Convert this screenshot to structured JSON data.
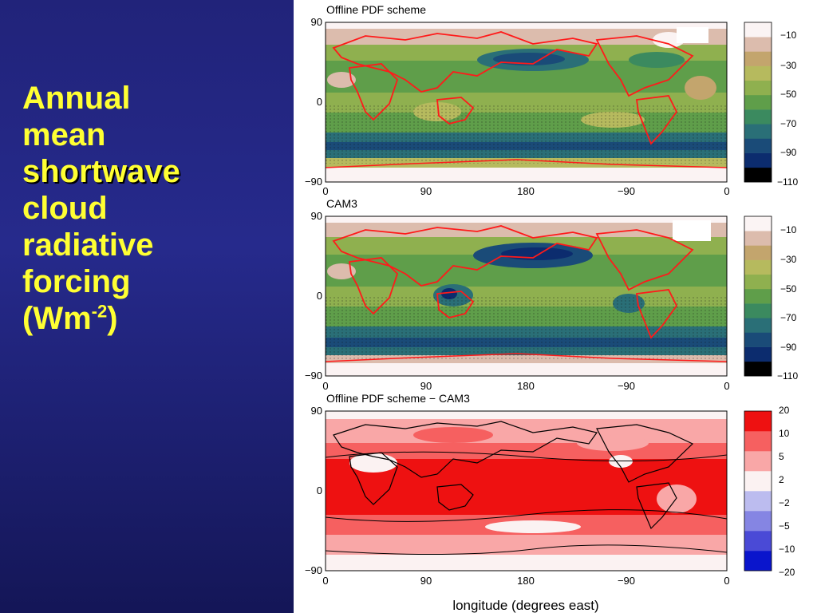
{
  "slide": {
    "title_lines": [
      "Annual",
      "mean",
      "shortwave",
      "cloud",
      "radiative",
      "forcing"
    ],
    "unit_prefix": "(Wm",
    "unit_sup": "-2",
    "unit_suffix": ")",
    "colors": {
      "background": "#23267f",
      "title": "#ffff33"
    }
  },
  "figure": {
    "xlabel": "longitude (degrees east)",
    "x_ticks": [
      "0",
      "90",
      "180",
      "−90",
      "0"
    ],
    "panels": [
      {
        "title": "Offline PDF scheme",
        "y_ticks": [
          "90",
          "0",
          "−90"
        ],
        "colorbar_labels": [
          "−10",
          "−30",
          "−50",
          "−70",
          "−90",
          "−110"
        ],
        "colorbar_colors": [
          "#fbf4f4",
          "#dcbcad",
          "#c3a56d",
          "#b6ba5e",
          "#8fb04f",
          "#5f9e4a",
          "#3b8a5f",
          "#2a6f77",
          "#1a4b78",
          "#0c2c6e",
          "#000000"
        ]
      },
      {
        "title": "CAM3",
        "y_ticks": [
          "90",
          "0",
          "−90"
        ],
        "colorbar_labels": [
          "−10",
          "−30",
          "−50",
          "−70",
          "−90",
          "−110"
        ],
        "colorbar_colors": [
          "#fbf4f4",
          "#dcbcad",
          "#c3a56d",
          "#b6ba5e",
          "#8fb04f",
          "#5f9e4a",
          "#3b8a5f",
          "#2a6f77",
          "#1a4b78",
          "#0c2c6e",
          "#000000"
        ]
      },
      {
        "title": "Offline PDF scheme − CAM3",
        "y_ticks": [
          "90",
          "0",
          "−90"
        ],
        "colorbar_labels": [
          "20",
          "10",
          "5",
          "2",
          "−2",
          "−5",
          "−10",
          "−20"
        ],
        "colorbar_colors": [
          "#ee1111",
          "#f66060",
          "#f9a7a7",
          "#fbf2f2",
          "#bcbcef",
          "#8585e3",
          "#4a4ad6",
          "#0a15cc"
        ]
      }
    ]
  }
}
